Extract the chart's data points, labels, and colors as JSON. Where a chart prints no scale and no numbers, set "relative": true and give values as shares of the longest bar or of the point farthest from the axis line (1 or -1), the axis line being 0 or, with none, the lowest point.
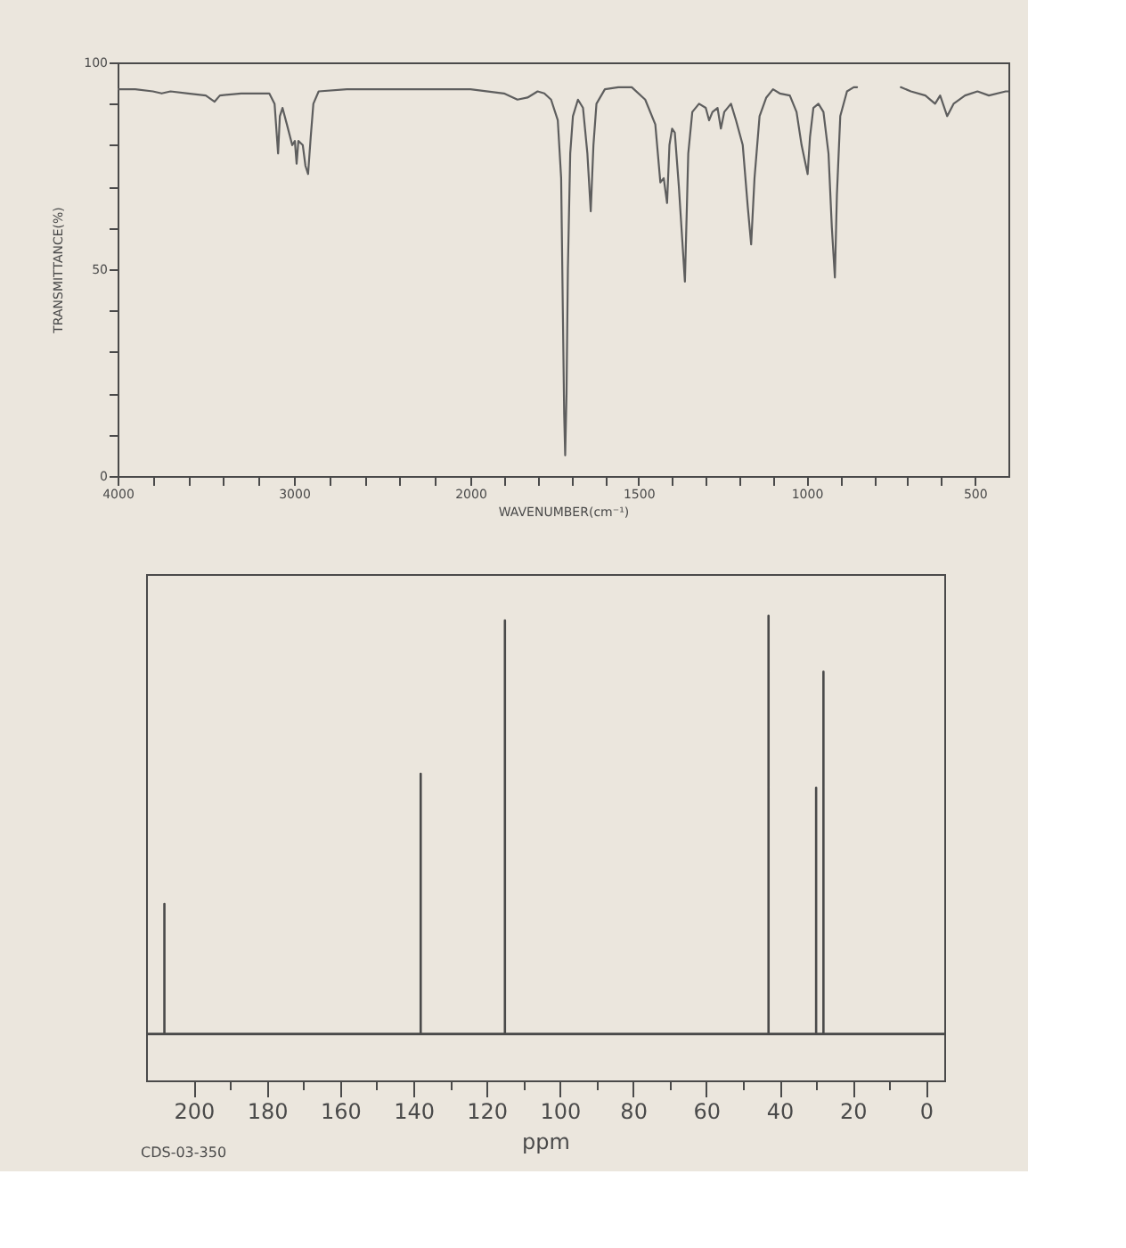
{
  "chart_data": [
    {
      "type": "line",
      "ylabel": "TRANSMITTANCE(%)",
      "xlim": [
        4000,
        2000
      ],
      "xticks": [
        4000,
        {
          "value": 3800,
          "label": null
        },
        {
          "value": 3600,
          "label": null
        },
        {
          "value": 3400,
          "label": null
        },
        {
          "value": 3200,
          "label": null
        },
        3000,
        {
          "value": 2800,
          "label": null
        },
        {
          "value": 2600,
          "label": null
        },
        {
          "value": 2400,
          "label": null
        },
        {
          "value": 2200,
          "label": null
        },
        2000
      ],
      "ylim": [
        0,
        100
      ],
      "yticks": [
        0,
        {
          "value": 10,
          "label": null
        },
        {
          "value": 20,
          "label": null
        },
        {
          "value": 30,
          "label": null
        },
        {
          "value": 40,
          "label": null
        },
        50,
        {
          "value": 60,
          "label": null
        },
        {
          "value": 70,
          "label": null
        },
        {
          "value": 80,
          "label": null
        },
        {
          "value": 90,
          "label": null
        },
        100
      ],
      "series": [
        {
          "color": "#5e5e5e",
          "x": [
            4000,
            3900,
            3800,
            3750,
            3700,
            3600,
            3500,
            3450,
            3420,
            3300,
            3140,
            3110,
            3090,
            3080,
            3065,
            3040,
            3010,
            2995,
            2985,
            2975,
            2950,
            2935,
            2920,
            2905,
            2890,
            2860,
            2700,
            2400,
            2200,
            2000
          ],
          "values": [
            93.5,
            93.5,
            93,
            92.5,
            93,
            92.5,
            92,
            90.5,
            92,
            92.5,
            92.5,
            90,
            78,
            87,
            89,
            85,
            80,
            81,
            75.5,
            81,
            80,
            75,
            73,
            82,
            90,
            93,
            93.5,
            93.5,
            93.5,
            93.5
          ]
        }
      ]
    },
    {
      "type": "line",
      "xlabel": "WAVENUMBER(cm⁻¹)",
      "xlim": [
        2000,
        400
      ],
      "xticks": [
        {
          "value": 1900,
          "label": null
        },
        {
          "value": 1800,
          "label": null
        },
        {
          "value": 1700,
          "label": null
        },
        {
          "value": 1600,
          "label": null
        },
        1500,
        {
          "value": 1400,
          "label": null
        },
        {
          "value": 1300,
          "label": null
        },
        {
          "value": 1200,
          "label": null
        },
        {
          "value": 1100,
          "label": null
        },
        1000,
        {
          "value": 900,
          "label": null
        },
        {
          "value": 800,
          "label": null
        },
        {
          "value": 700,
          "label": null
        },
        {
          "value": 600,
          "label": null
        },
        500
      ],
      "ylim": [
        0,
        100
      ],
      "tick_labels": "x",
      "series": [
        {
          "color": "#5e5e5e",
          "x": [
            2000,
            1900,
            1860,
            1830,
            1800,
            1780,
            1760,
            1740,
            1730,
            1725,
            1721,
            1718,
            1714,
            1710,
            1703,
            1695,
            1680,
            1665,
            1652,
            1642,
            1634,
            1625,
            1600,
            1560,
            1520,
            1480,
            1450,
            1435,
            1425,
            1415,
            1408,
            1400,
            1392,
            1380,
            1362,
            1352,
            1340,
            1320,
            1300,
            1290,
            1280,
            1265,
            1255,
            1245,
            1225,
            1210,
            1190,
            1175,
            1165,
            1155,
            1140,
            1120,
            1100,
            1080,
            1050,
            1030,
            1015,
            997,
            990,
            980,
            965,
            950,
            935,
            925,
            916,
            910,
            900,
            880,
            860,
            850,
            800,
            720,
            690,
            647,
            618,
            603,
            582,
            563,
            529,
            492,
            458,
            408,
            400
          ],
          "values": [
            93.5,
            92.5,
            91,
            91.5,
            93,
            92.5,
            91,
            86,
            72,
            40,
            15,
            5,
            20,
            50,
            78,
            87,
            91,
            89,
            78,
            64,
            80,
            90,
            93.5,
            94,
            94,
            91,
            85,
            71,
            72,
            66,
            80,
            84,
            83,
            70,
            47,
            78,
            88,
            90,
            89,
            86,
            88,
            89,
            84,
            88,
            90,
            86,
            80,
            65,
            56,
            72,
            87,
            91.5,
            93.5,
            92.5,
            92,
            88,
            80,
            73,
            82,
            89,
            90,
            88,
            78,
            60,
            48,
            68,
            87,
            93,
            94,
            94,
            null,
            94,
            93,
            92,
            90,
            92,
            87,
            90,
            92,
            93,
            92,
            93,
            93
          ]
        }
      ]
    },
    {
      "type": "line",
      "xlabel": "ppm",
      "relative": true,
      "xlim": [
        213,
        -5
      ],
      "xticks": [
        200,
        {
          "value": 190,
          "label": null
        },
        180,
        {
          "value": 170,
          "label": null
        },
        160,
        {
          "value": 150,
          "label": null
        },
        140,
        {
          "value": 130,
          "label": null
        },
        120,
        {
          "value": 110,
          "label": null
        },
        100,
        {
          "value": 90,
          "label": null
        },
        80,
        {
          "value": 70,
          "label": null
        },
        60,
        {
          "value": 50,
          "label": null
        },
        40,
        {
          "value": 30,
          "label": null
        },
        20,
        {
          "value": 10,
          "label": null
        },
        0
      ],
      "annotations": [
        "CDS-03-350"
      ],
      "series": [
        {
          "color": "#4a4a4a",
          "x": [
            213,
            208,
            208,
            208,
            138,
            138,
            138,
            115,
            115,
            115,
            43,
            43,
            43,
            30,
            30,
            30,
            28,
            28,
            28,
            -5
          ],
          "values": [
            0.1,
            0.1,
            0.38,
            0.1,
            0.1,
            0.66,
            0.1,
            0.1,
            0.99,
            0.1,
            0.1,
            1,
            0.1,
            0.1,
            0.63,
            0.1,
            0.1,
            0.88,
            0.1,
            0.1
          ]
        }
      ]
    }
  ]
}
